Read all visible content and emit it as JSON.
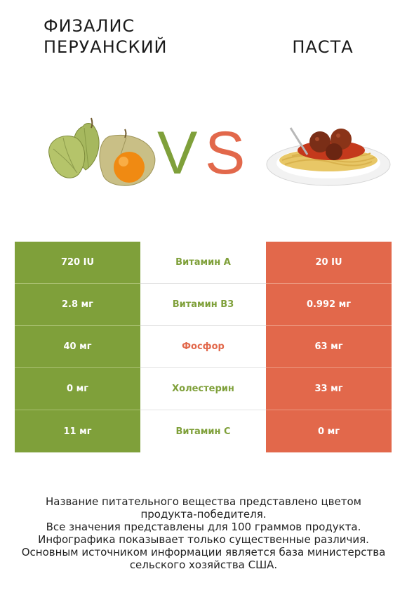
{
  "header": {
    "left_title": "ФИЗАЛИС ПЕРУАНСКИЙ",
    "right_title": "ПАСТА",
    "vs_letters": [
      "V",
      "S"
    ]
  },
  "colors": {
    "left_accent": "#7fa03a",
    "right_accent": "#e2684b"
  },
  "comparison": {
    "rows": [
      {
        "left": "720 IU",
        "nutrient": "Витамин A",
        "right": "20 IU",
        "winner": "left"
      },
      {
        "left": "2.8 мг",
        "nutrient": "Витамин B3",
        "right": "0.992 мг",
        "winner": "left"
      },
      {
        "left": "40 мг",
        "nutrient": "Фосфор",
        "right": "63 мг",
        "winner": "right"
      },
      {
        "left": "0 мг",
        "nutrient": "Холестерин",
        "right": "33 мг",
        "winner": "left"
      },
      {
        "left": "11 мг",
        "nutrient": "Витамин C",
        "right": "0 мг",
        "winner": "left"
      }
    ]
  },
  "footer": {
    "lines": [
      "Название питательного вещества представлено цветом",
      "продукта-победителя.",
      "Все значения представлены для 100 граммов продукта.",
      "Инфографика показывает только существенные различия.",
      "Основным источником информации является база министерства",
      "сельского хозяйства США."
    ]
  }
}
